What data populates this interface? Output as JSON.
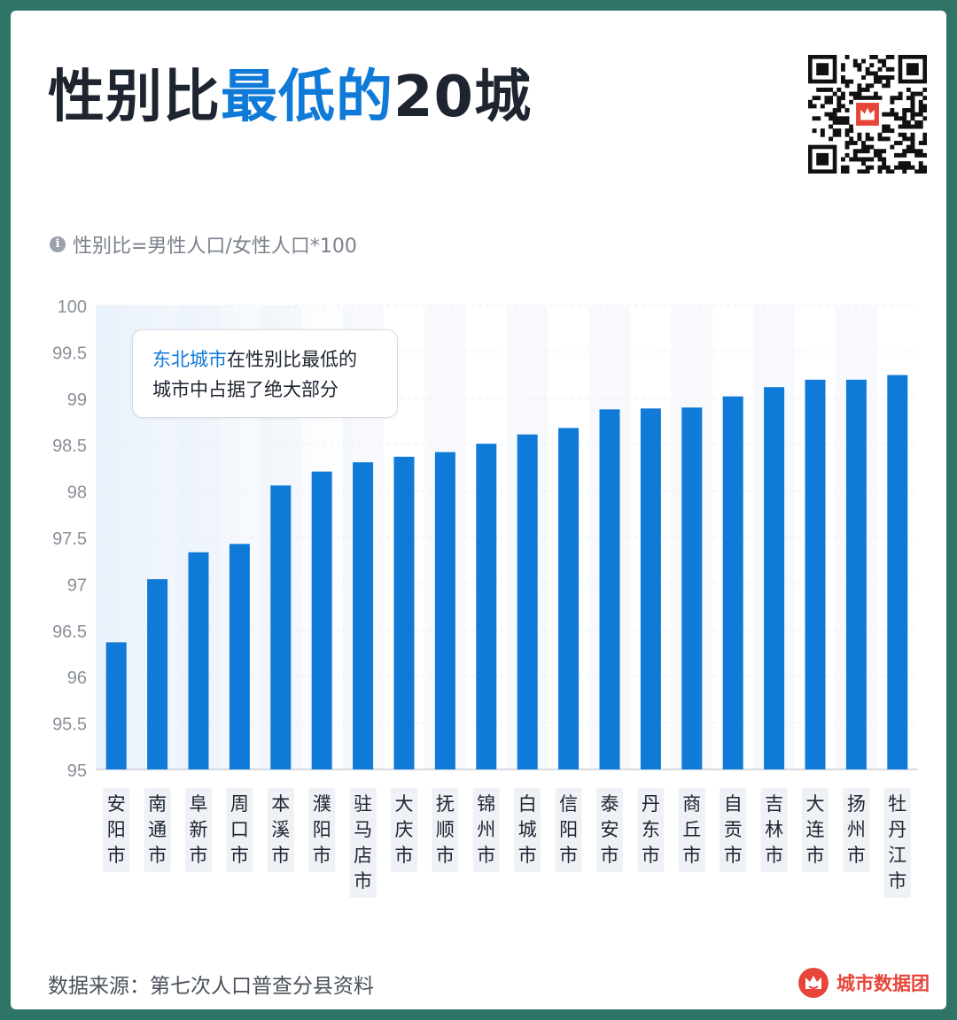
{
  "title": {
    "part1": "性别比",
    "accent": "最低的",
    "part2": "20城"
  },
  "note": "性别比=男性人口/女性人口*100",
  "callout": {
    "highlight": "东北城市",
    "line1_rest": "在性别比最低的",
    "line2": "城市中占据了绝大部分"
  },
  "source": "数据来源：第七次人口普查分县资料",
  "brand": "城市数据团",
  "icons": [
    "info-icon",
    "qr-code-icon",
    "brand-logo-icon"
  ],
  "colors": {
    "bar": "#0f7ad8",
    "accent": "#0f7ad8",
    "brand": "#e8453a",
    "frame": "#2e7567"
  },
  "chart_data": {
    "type": "bar",
    "title": "性别比最低的20城",
    "xlabel": "",
    "ylabel": "",
    "ylim": [
      95,
      100
    ],
    "yticks": [
      "95",
      "95.5",
      "96",
      "96.5",
      "97",
      "97.5",
      "98",
      "98.5",
      "99",
      "99.5",
      "100"
    ],
    "categories": [
      "安阳市",
      "南通市",
      "阜新市",
      "周口市",
      "本溪市",
      "濮阳市",
      "驻马店市",
      "大庆市",
      "抚顺市",
      "锦州市",
      "白城市",
      "信阳市",
      "泰安市",
      "丹东市",
      "商丘市",
      "自贡市",
      "吉林市",
      "大连市",
      "扬州市",
      "牡丹江市"
    ],
    "values": [
      96.37,
      97.05,
      97.34,
      97.43,
      98.06,
      98.21,
      98.31,
      98.37,
      98.42,
      98.51,
      98.61,
      98.68,
      98.88,
      98.89,
      98.9,
      99.02,
      99.12,
      99.2,
      99.2,
      99.25
    ]
  }
}
